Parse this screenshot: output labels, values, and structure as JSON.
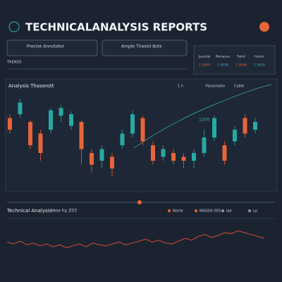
{
  "header": {
    "title": "TECHNICALANALYSIS REPORTS"
  },
  "inputs": [
    {
      "label": "Precise Annotator"
    },
    {
      "label": "Ample Thasiol Bots"
    }
  ],
  "section_label": "TRENDS",
  "summary": {
    "rows": [
      [
        "Jucertal",
        "Noisasce",
        "Tatrd",
        "Hosicr"
      ],
      [
        "1.5090",
        "1.5030",
        "1.5008",
        "1.5050"
      ]
    ]
  },
  "main_chart": {
    "title": "Analysis Thasorott",
    "tabs": [
      "1 h",
      "Parashalen",
      "Cable"
    ],
    "annotation": "1200",
    "ylim": [
      0,
      100
    ],
    "candles": [
      {
        "open": 75,
        "close": 60,
        "high": 80,
        "low": 55
      },
      {
        "open": 80,
        "close": 95,
        "high": 100,
        "low": 75
      },
      {
        "open": 70,
        "close": 40,
        "high": 72,
        "low": 35
      },
      {
        "open": 55,
        "close": 30,
        "high": 60,
        "low": 20
      },
      {
        "open": 60,
        "close": 85,
        "high": 88,
        "low": 55
      },
      {
        "open": 78,
        "close": 88,
        "high": 92,
        "low": 70
      },
      {
        "open": 65,
        "close": 80,
        "high": 84,
        "low": 60
      },
      {
        "open": 70,
        "close": 35,
        "high": 72,
        "low": 15
      },
      {
        "open": 30,
        "close": 15,
        "high": 35,
        "low": 5
      },
      {
        "open": 20,
        "close": 35,
        "high": 40,
        "low": 10
      },
      {
        "open": 25,
        "close": 10,
        "high": 30,
        "low": 0
      },
      {
        "open": 40,
        "close": 55,
        "high": 60,
        "low": 35
      },
      {
        "open": 55,
        "close": 80,
        "high": 85,
        "low": 50
      },
      {
        "open": 75,
        "close": 45,
        "high": 78,
        "low": 40
      },
      {
        "open": 40,
        "close": 20,
        "high": 45,
        "low": 15
      },
      {
        "open": 25,
        "close": 35,
        "high": 40,
        "low": 20
      },
      {
        "open": 30,
        "close": 20,
        "high": 35,
        "low": 15
      },
      {
        "open": 25,
        "close": 20,
        "high": 30,
        "low": 10
      },
      {
        "open": 20,
        "close": 30,
        "high": 35,
        "low": 10
      },
      {
        "open": 30,
        "close": 50,
        "high": 60,
        "low": 25
      },
      {
        "open": 50,
        "close": 75,
        "high": 78,
        "low": 45
      },
      {
        "open": 40,
        "close": 20,
        "high": 45,
        "low": 15
      },
      {
        "open": 45,
        "close": 60,
        "high": 65,
        "low": 40
      },
      {
        "open": 75,
        "close": 55,
        "high": 80,
        "low": 50
      },
      {
        "open": 60,
        "close": 70,
        "high": 75,
        "low": 55
      }
    ]
  },
  "lower_chart": {
    "title": "Technical Analysis",
    "subtitle": "Vesx hy Z03",
    "legend": [
      "Nocte",
      "NASIOX 003",
      "Ipe",
      "Lp"
    ],
    "ylim": [
      0,
      30
    ],
    "values": [
      14,
      12,
      15,
      11,
      13,
      10,
      12,
      9,
      11,
      8,
      10,
      12,
      9,
      13,
      11,
      10,
      12,
      14,
      11,
      13,
      15,
      17,
      14,
      16,
      13,
      12,
      15,
      18,
      16,
      20,
      22,
      19,
      21,
      24,
      23,
      26,
      24,
      22,
      20,
      18
    ]
  }
}
